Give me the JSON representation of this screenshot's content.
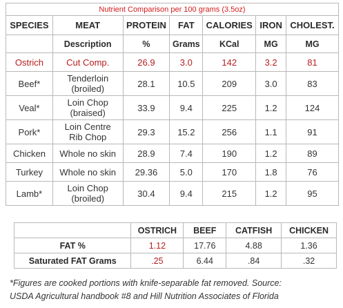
{
  "table": {
    "title": "Nutrient Comparison per 100 grams (3.5oz)",
    "headers": [
      "SPECIES",
      "MEAT",
      "PROTEIN",
      "FAT",
      "CALORIES",
      "IRON",
      "CHOLEST."
    ],
    "units": [
      "",
      "Description",
      "%",
      "Grams",
      "KCal",
      "MG",
      "MG"
    ],
    "rows": [
      {
        "species": "Ostrich",
        "meat_1": "Cut Comp.",
        "meat_2": "",
        "protein": "26.9",
        "fat": "3.0",
        "calories": "142",
        "iron": "3.2",
        "cholest": "81"
      },
      {
        "species": "Beef*",
        "meat_1": "Tenderloin",
        "meat_2": "(broiled)",
        "protein": "28.1",
        "fat": "10.5",
        "calories": "209",
        "iron": "3.0",
        "cholest": "83"
      },
      {
        "species": "Veal*",
        "meat_1": "Loin Chop",
        "meat_2": "(braised)",
        "protein": "33.9",
        "fat": "9.4",
        "calories": "225",
        "iron": "1.2",
        "cholest": "124"
      },
      {
        "species": "Pork*",
        "meat_1": "Loin Centre",
        "meat_2": "Rib Chop",
        "protein": "29.3",
        "fat": "15.2",
        "calories": "256",
        "iron": "1.1",
        "cholest": "91"
      },
      {
        "species": "Chicken",
        "meat_1": "Whole no skin",
        "meat_2": "",
        "protein": "28.9",
        "fat": "7.4",
        "calories": "190",
        "iron": "1.2",
        "cholest": "89"
      },
      {
        "species": "Turkey",
        "meat_1": "Whole no skin",
        "meat_2": "",
        "protein": "29.36",
        "fat": "5.0",
        "calories": "170",
        "iron": "1.8",
        "cholest": "76"
      },
      {
        "species": "Lamb*",
        "meat_1": "Loin Chop",
        "meat_2": "(broiled)",
        "protein": "30.4",
        "fat": "9.4",
        "calories": "215",
        "iron": "1.2",
        "cholest": "95"
      }
    ]
  },
  "comparison": {
    "headers": [
      "OSTRICH",
      "BEEF",
      "CATFISH",
      "CHICKEN"
    ],
    "rows": [
      {
        "label": "FAT %",
        "values": [
          "1.12",
          "17.76",
          "4.88",
          "1.36"
        ]
      },
      {
        "label": "Saturated FAT Grams",
        "values": [
          ".25",
          "6.44",
          ".84",
          ".32"
        ]
      }
    ]
  },
  "footnote": {
    "line1": "*Figures are cooked portions with knife-separable fat removed. Source:",
    "line2": "USDA Agricultural handbook #8 and Hill Nutrition Associates of Florida"
  },
  "colors": {
    "highlight": "#b51d1d",
    "title": "#d41b1b",
    "border": "#b8b8b8"
  }
}
